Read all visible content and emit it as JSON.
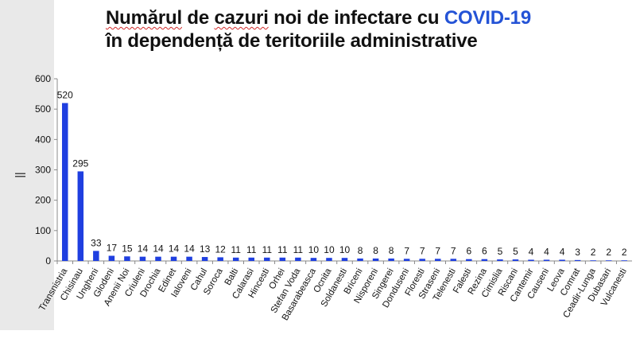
{
  "title": {
    "part1": "Numărul",
    "part2": "de",
    "part3": "cazuri",
    "part4": "noi de infectare cu",
    "accent": "COVID-19",
    "line2": "în dependență de teritoriile administrative"
  },
  "colors": {
    "bar": "#1f3fe0",
    "accent": "#2453d6",
    "axis": "#888888"
  },
  "chart_data": {
    "type": "bar",
    "title": "Numărul de cazuri noi de infectare cu COVID-19 în dependență de teritoriile administrative",
    "xlabel": "",
    "ylabel": "||",
    "ylim": [
      0,
      600
    ],
    "yticks": [
      0,
      100,
      200,
      300,
      400,
      500,
      600
    ],
    "grid": false,
    "legend": "none",
    "categories": [
      "Transnistria",
      "Chisinau",
      "Ungheni",
      "Glodeni",
      "Anenii Noi",
      "Criuleni",
      "Drochia",
      "Edinet",
      "Ialoveni",
      "Cahul",
      "Soroca",
      "Balti",
      "Calarasi",
      "Hincesti",
      "Orhei",
      "Stefan Voda",
      "Basarabeasca",
      "Ocnita",
      "Soldanesti",
      "Briceni",
      "Nisporeni",
      "Singerei",
      "Donduseni",
      "Floresti",
      "Straseni",
      "Telenesti",
      "Falesti",
      "Rezina",
      "Cimislia",
      "Riscani",
      "Cantemir",
      "Causeni",
      "Leova",
      "Comrat",
      "Ceadir-Lunga",
      "Dubasari",
      "Vulcanesti"
    ],
    "values": [
      520,
      295,
      33,
      17,
      15,
      14,
      14,
      14,
      14,
      13,
      12,
      11,
      11,
      11,
      11,
      11,
      10,
      10,
      10,
      8,
      8,
      8,
      7,
      7,
      7,
      7,
      6,
      6,
      5,
      5,
      4,
      4,
      4,
      3,
      2,
      2,
      2
    ]
  }
}
